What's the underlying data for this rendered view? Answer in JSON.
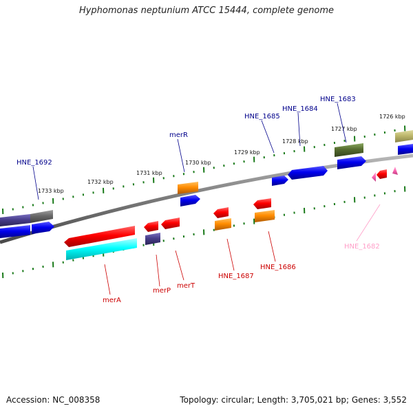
{
  "title": "Hyphomonas neptunium ATCC 15444, complete genome",
  "footer": {
    "accession": "Accession: NC_008358",
    "topology": "Topology: circular; Length: 3,705,021 bp; Genes: 3,552"
  },
  "colors": {
    "backbone": "#808080",
    "tick": "#1a7a1a",
    "red": "#ff0000",
    "blue": "#0000ee",
    "orange": "#ff8c00",
    "cyan": "#00ffff",
    "slate": "#483d8b",
    "olive": "#556b2f",
    "khaki": "#bdb76b",
    "gray": "#696969",
    "pink": "#ff69b4",
    "label_blue": "#00008b",
    "label_red": "#cc0000",
    "label_pink": "#ff9ec8"
  },
  "scale_labels": [
    "1733 kbp",
    "1732 kbp",
    "1731 kbp",
    "1730 kbp",
    "1729 kbp",
    "1728 kbp",
    "1727 kbp",
    "1726 kbp"
  ],
  "gene_labels": {
    "HNE_1692": "HNE_1692",
    "merR": "merR",
    "HNE_1685": "HNE_1685",
    "HNE_1684": "HNE_1684",
    "HNE_1683": "HNE_1683",
    "merA": "merA",
    "merP": "merP",
    "merT": "merT",
    "HNE_1687": "HNE_1687",
    "HNE_1686": "HNE_1686",
    "HNE_1682": "HNE_1682"
  }
}
